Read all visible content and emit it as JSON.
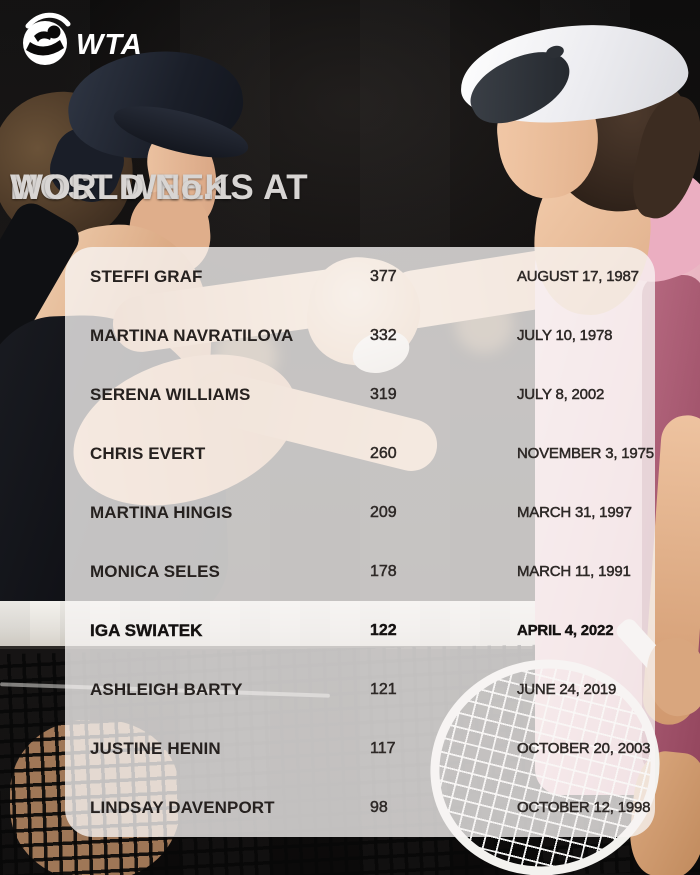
{
  "brand": {
    "logo": "WTA"
  },
  "title": {
    "line1": "MOST WEEKS AT",
    "line2": "WORLD No.1"
  },
  "table": {
    "rows": [
      {
        "player": "STEFFI GRAF",
        "weeks": "377",
        "date": "AUGUST 17, 1987",
        "highlight": false
      },
      {
        "player": "MARTINA NAVRATILOVA",
        "weeks": "332",
        "date": "JULY 10, 1978",
        "highlight": false
      },
      {
        "player": "SERENA WILLIAMS",
        "weeks": "319",
        "date": "JULY 8, 2002",
        "highlight": false
      },
      {
        "player": "CHRIS EVERT",
        "weeks": "260",
        "date": "NOVEMBER 3, 1975",
        "highlight": false
      },
      {
        "player": "MARTINA HINGIS",
        "weeks": "209",
        "date": "MARCH 31, 1997",
        "highlight": false
      },
      {
        "player": "MONICA SELES",
        "weeks": "178",
        "date": "MARCH 11, 1991",
        "highlight": false
      },
      {
        "player": "IGA SWIATEK",
        "weeks": "122",
        "date": "APRIL 4, 2022",
        "highlight": true
      },
      {
        "player": "ASHLEIGH BARTY",
        "weeks": "121",
        "date": "JUNE 24, 2019",
        "highlight": false
      },
      {
        "player": "JUSTINE HENIN",
        "weeks": "117",
        "date": "OCTOBER 20, 2003",
        "highlight": false
      },
      {
        "player": "LINDSAY DAVENPORT",
        "weeks": "98",
        "date": "OCTOBER 12, 1998",
        "highlight": false
      }
    ]
  },
  "chart_data": {
    "type": "table",
    "title": "MOST WEEKS AT WORLD No.1",
    "columns": [
      "player",
      "weeks_at_no1",
      "date"
    ],
    "highlighted_row": "IGA SWIATEK",
    "rows": [
      [
        "STEFFI GRAF",
        377,
        "AUGUST 17, 1987"
      ],
      [
        "MARTINA NAVRATILOVA",
        332,
        "JULY 10, 1978"
      ],
      [
        "SERENA WILLIAMS",
        319,
        "JULY 8, 2002"
      ],
      [
        "CHRIS EVERT",
        260,
        "NOVEMBER 3, 1975"
      ],
      [
        "MARTINA HINGIS",
        209,
        "MARCH 31, 1997"
      ],
      [
        "MONICA SELES",
        178,
        "MARCH 11, 1991"
      ],
      [
        "IGA SWIATEK",
        122,
        "APRIL 4, 2022"
      ],
      [
        "ASHLEIGH BARTY",
        121,
        "JUNE 24, 2019"
      ],
      [
        "JUSTINE HENIN",
        117,
        "OCTOBER 20, 2003"
      ],
      [
        "LINDSAY DAVENPORT",
        98,
        "OCTOBER 12, 1998"
      ]
    ]
  },
  "colors": {
    "panel": "rgba(247,245,243,0.78)",
    "text": "#26211f",
    "title_text": "#d8d5d3",
    "dress_pink": "#eebcc8",
    "net_band": "#efede9",
    "background": "#0a0909"
  }
}
